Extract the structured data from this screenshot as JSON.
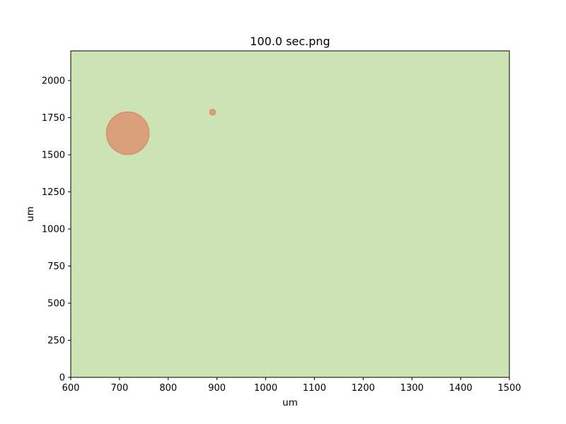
{
  "chart_data": {
    "type": "scatter",
    "title": "100.0 sec.png",
    "xlabel": "um",
    "ylabel": "um",
    "xlim": [
      600,
      1500
    ],
    "ylim": [
      0,
      2200
    ],
    "x_ticks": [
      600,
      700,
      800,
      900,
      1000,
      1100,
      1200,
      1300,
      1400,
      1500
    ],
    "y_ticks": [
      0,
      250,
      500,
      750,
      1000,
      1250,
      1500,
      1750,
      2000
    ],
    "grid": false,
    "background_color": "#cce4b4",
    "points": [
      {
        "x": 717,
        "y": 1645,
        "r": 30,
        "color": "#d9a07c",
        "edge_color": "#e08a6a"
      },
      {
        "x": 891,
        "y": 1787,
        "r": 4,
        "color": "#d9a07c",
        "edge_color": "#e08a6a"
      }
    ]
  }
}
